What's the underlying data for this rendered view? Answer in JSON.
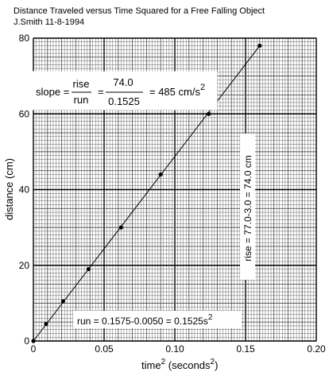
{
  "chart_data": {
    "type": "scatter",
    "title": "Distance Traveled versus Time Squared for a Free Falling Object",
    "subtitle": "J.Smith 11-8-1994",
    "xlabel": {
      "text": "time",
      "sup1": "2",
      "middle": " (seconds",
      "sup2": "2",
      "end": ")"
    },
    "ylabel": "distance (cm)",
    "xlim": [
      0,
      0.2
    ],
    "ylim": [
      0,
      80
    ],
    "x_ticks": [
      0,
      0.05,
      0.1,
      0.15,
      0.2
    ],
    "x_tick_labels": [
      "0",
      "0.05",
      "0.10",
      "0.15",
      "0.20"
    ],
    "y_ticks": [
      0,
      20,
      40,
      60,
      80
    ],
    "y_tick_labels": [
      "0",
      "20",
      "40",
      "60",
      "80"
    ],
    "grid": true,
    "points": [
      {
        "x": 0.0,
        "y": 0.0
      },
      {
        "x": 0.009,
        "y": 4.5
      },
      {
        "x": 0.021,
        "y": 10.5
      },
      {
        "x": 0.039,
        "y": 19.0
      },
      {
        "x": 0.062,
        "y": 30.0
      },
      {
        "x": 0.09,
        "y": 44.0
      },
      {
        "x": 0.124,
        "y": 60.0
      },
      {
        "x": 0.16,
        "y": 78.0
      }
    ],
    "fit_line": {
      "x1": 0,
      "y1": 0,
      "x2": 0.16,
      "y2": 78.0
    },
    "slope_box": {
      "left": "slope =",
      "rise": "rise",
      "run": "run",
      "numerator": "74.0",
      "denominator": "0.1525",
      "result": "= 485 cm/s",
      "sup": "2"
    },
    "run_label": {
      "text": "run = 0.1575-0.0050 = 0.1525s",
      "sup": "2"
    },
    "rise_label": "rise = 77.0-3.0 = 74.0 cm",
    "colors": {
      "grid_major": "#000000",
      "grid_minor": "#555555",
      "fit_line": "#000000",
      "box": "#ffffff"
    }
  }
}
